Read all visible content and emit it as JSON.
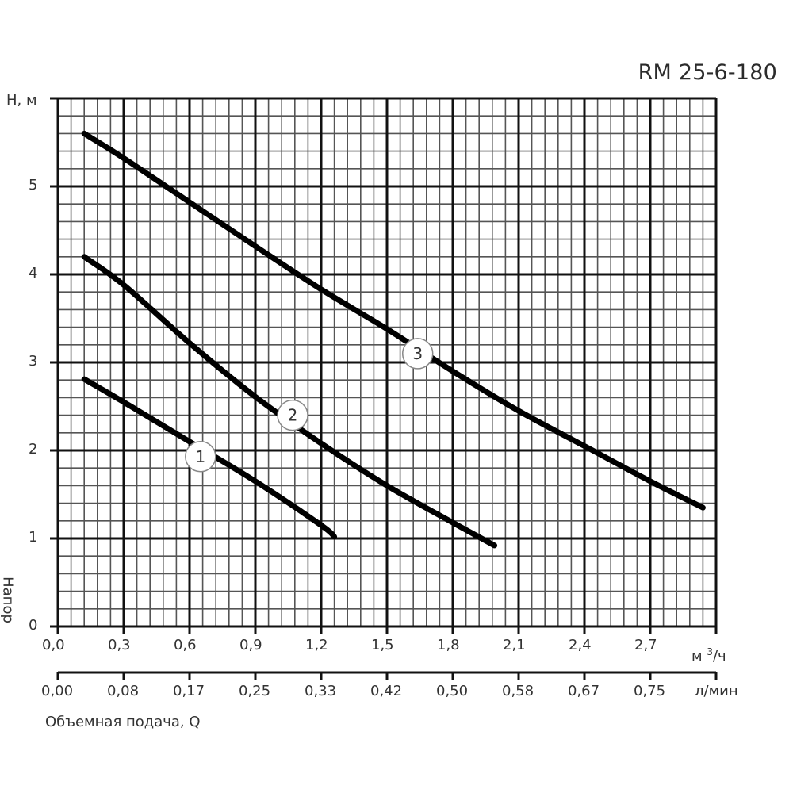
{
  "title": "RM 25-6-180",
  "y_axis": {
    "label_top": "H, м",
    "label_side": "Напор",
    "ticks": [
      "0",
      "1",
      "2",
      "3",
      "4",
      "5"
    ]
  },
  "x_axis": {
    "primary_ticks": [
      "0,0",
      "0,3",
      "0,6",
      "0,9",
      "1,2",
      "1,5",
      "1,8",
      "2,1",
      "2,4",
      "2,7"
    ],
    "primary_unit_base": "м ",
    "primary_unit_sup": "3",
    "primary_unit_tail": "/ч",
    "secondary_ticks": [
      "0,00",
      "0,08",
      "0,17",
      "0,25",
      "0,33",
      "0,42",
      "0,50",
      "0,58",
      "0,67",
      "0,75"
    ],
    "secondary_unit": "л/мин",
    "title": "Объемная подача, Q"
  },
  "curve_labels": [
    "1",
    "2",
    "3"
  ],
  "colors": {
    "grid_major": "#111111",
    "grid_minor": "#555555",
    "curve": "#000000",
    "label_stroke": "#888888"
  },
  "chart_data": {
    "type": "line",
    "title": "RM 25-6-180",
    "xlabel": "Объемная подача, Q (м³/ч)",
    "ylabel": "Напор H, м",
    "xlim": [
      0,
      3.0
    ],
    "ylim": [
      0,
      6
    ],
    "grid": true,
    "x_ticks": [
      0.0,
      0.3,
      0.6,
      0.9,
      1.2,
      1.5,
      1.8,
      2.1,
      2.4,
      2.7
    ],
    "secondary_x_ticks_l_min": [
      0.0,
      0.08,
      0.17,
      0.25,
      0.33,
      0.42,
      0.5,
      0.58,
      0.67,
      0.75
    ],
    "y_ticks": [
      0,
      1,
      2,
      3,
      4,
      5
    ],
    "series": [
      {
        "name": "1",
        "x": [
          0.12,
          0.3,
          0.6,
          0.9,
          1.2,
          1.26
        ],
        "y": [
          2.81,
          2.55,
          2.1,
          1.65,
          1.15,
          1.02
        ]
      },
      {
        "name": "2",
        "x": [
          0.12,
          0.3,
          0.6,
          0.9,
          1.2,
          1.5,
          1.8,
          1.99
        ],
        "y": [
          4.2,
          3.88,
          3.22,
          2.61,
          2.08,
          1.6,
          1.18,
          0.92
        ]
      },
      {
        "name": "3",
        "x": [
          0.12,
          0.3,
          0.6,
          0.9,
          1.2,
          1.5,
          1.8,
          2.1,
          2.4,
          2.7,
          2.94
        ],
        "y": [
          5.6,
          5.32,
          4.82,
          4.32,
          3.83,
          3.38,
          2.9,
          2.45,
          2.05,
          1.65,
          1.35
        ]
      }
    ],
    "label_positions": [
      {
        "name": "1",
        "x": 0.65,
        "y": 1.93
      },
      {
        "name": "2",
        "x": 1.07,
        "y": 2.4
      },
      {
        "name": "3",
        "x": 1.64,
        "y": 3.1
      }
    ]
  }
}
